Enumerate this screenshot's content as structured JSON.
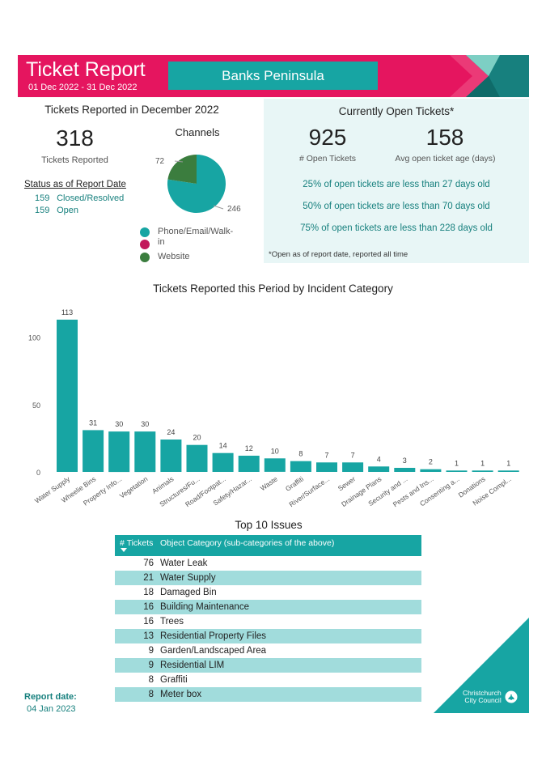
{
  "header": {
    "title": "Ticket Report",
    "date_range": "01 Dec 2022 - 31 Dec 2022",
    "region": "Banks Peninsula"
  },
  "summary": {
    "heading": "Tickets Reported in December 2022",
    "tickets_reported": "318",
    "tickets_reported_label": "Tickets Reported",
    "status_heading": "Status as of Report Date",
    "status": [
      {
        "count": "159",
        "label": "Closed/Resolved"
      },
      {
        "count": "159",
        "label": "Open"
      }
    ]
  },
  "channels": {
    "heading": "Channels",
    "legend": [
      {
        "label": "Phone/Email/Walk-\nin",
        "color": "#17a5a3"
      },
      {
        "label": "",
        "color": "#c2185b"
      },
      {
        "label": "Website",
        "color": "#3b7d3e"
      }
    ]
  },
  "open_tickets": {
    "heading": "Currently Open Tickets*",
    "count": "925",
    "count_label": "# Open Tickets",
    "avg_age": "158",
    "avg_age_label": "Avg open ticket age (days)",
    "percentiles": [
      "25% of open tickets are less than 27 days old",
      "50% of open tickets are less than 70 days old",
      "75% of open tickets are less than 228 days old"
    ],
    "footnote": "*Open as of report date, reported all time"
  },
  "chart_data": [
    {
      "type": "pie",
      "title": "Channels",
      "slices": [
        {
          "label": "Phone/Email/Walk-in",
          "value": 246,
          "color": "#17a5a3"
        },
        {
          "label": "Website",
          "value": 72,
          "color": "#3b7d3e"
        }
      ],
      "data_labels": [
        "246",
        "72"
      ]
    },
    {
      "type": "bar",
      "title": "Tickets Reported this Period by Incident Category",
      "categories": [
        "Water Supply",
        "Wheelie Bins",
        "Property Info...",
        "Vegetation",
        "Animals",
        "Structures/Fu...",
        "Road/Footpat...",
        "Safety/Hazar...",
        "Waste",
        "Graffiti",
        "River/Surface...",
        "Sewer",
        "Drainage Plans",
        "Security and ...",
        "Pests and Ins...",
        "Consenting a...",
        "Donations",
        "Noise Compl..."
      ],
      "values": [
        113,
        31,
        30,
        30,
        24,
        20,
        14,
        12,
        10,
        8,
        7,
        7,
        4,
        3,
        2,
        1,
        1,
        1
      ],
      "yticks": [
        "0",
        "50",
        "100"
      ],
      "ylim": [
        0,
        120
      ],
      "color": "#17a5a3"
    }
  ],
  "top_issues": {
    "title": "Top 10 Issues",
    "col_tickets": "# Tickets",
    "col_category": "Object Category (sub-categories of the above)",
    "rows": [
      {
        "count": "76",
        "label": "Water Leak"
      },
      {
        "count": "21",
        "label": "Water Supply"
      },
      {
        "count": "18",
        "label": "Damaged Bin"
      },
      {
        "count": "16",
        "label": "Building Maintenance"
      },
      {
        "count": "16",
        "label": "Trees"
      },
      {
        "count": "13",
        "label": "Residential Property Files"
      },
      {
        "count": "9",
        "label": "Garden/Landscaped Area"
      },
      {
        "count": "9",
        "label": "Residential LIM"
      },
      {
        "count": "8",
        "label": "Graffiti"
      },
      {
        "count": "8",
        "label": "Meter box"
      }
    ]
  },
  "footer": {
    "report_date_label": "Report date:",
    "report_date": "04 Jan 2023",
    "logo_line1": "Christchurch",
    "logo_line2": "City Council"
  }
}
